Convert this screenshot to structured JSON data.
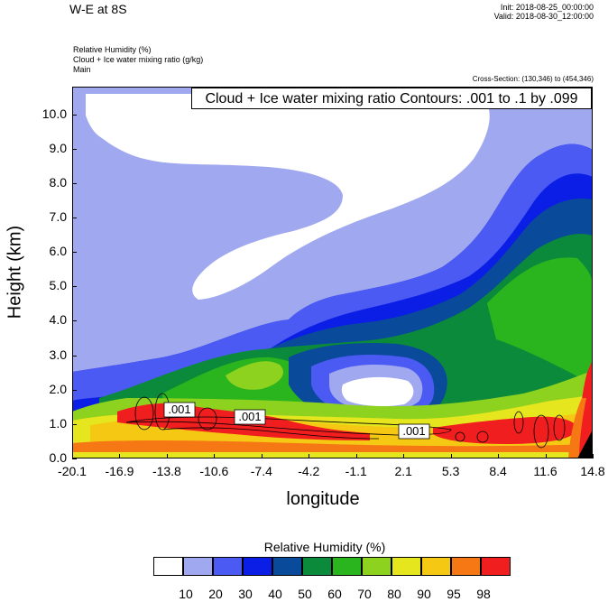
{
  "header": {
    "title": "W-E at 8S",
    "init": "Init: 2018-08-25_00:00:00",
    "valid": "Valid: 2018-08-30_12:00:00",
    "fields": [
      "Relative Humidity   (%)",
      "Cloud + Ice water mixing ratio   (g/kg)",
      "Main"
    ],
    "cross_section": "Cross-Section: (130,346) to (454,346)"
  },
  "chart_data": {
    "type": "heatmap",
    "contour_title": "Cloud + Ice water mixing ratio Contours: .001 to .1 by .099",
    "contour_labels": [
      ".001",
      ".001",
      ".001"
    ],
    "xlabel": "longitude",
    "ylabel": "Height (km)",
    "x_ticks": [
      "-20.1",
      "-16.9",
      "-13.8",
      "-10.6",
      "-7.4",
      "-4.2",
      "-1.1",
      "2.1",
      "5.3",
      "8.4",
      "11.6",
      "14.8"
    ],
    "y_ticks": [
      "0.0",
      "1.0",
      "2.0",
      "3.0",
      "4.0",
      "5.0",
      "6.0",
      "7.0",
      "8.0",
      "9.0",
      "10.0"
    ],
    "ylim": [
      0,
      10.8
    ],
    "xlim": [
      -20.1,
      14.8
    ],
    "legend": {
      "title": "Relative Humidity  (%)",
      "levels": [
        "10",
        "20",
        "30",
        "40",
        "50",
        "60",
        "70",
        "80",
        "90",
        "95",
        "98"
      ],
      "colors": [
        "#ffffff",
        "#a0a8f0",
        "#4a5af2",
        "#0a1ee6",
        "#0a4a9a",
        "#0a8a3a",
        "#2ab41e",
        "#8cd21e",
        "#e6e61e",
        "#f5c814",
        "#f57814",
        "#f01e1e"
      ]
    }
  }
}
